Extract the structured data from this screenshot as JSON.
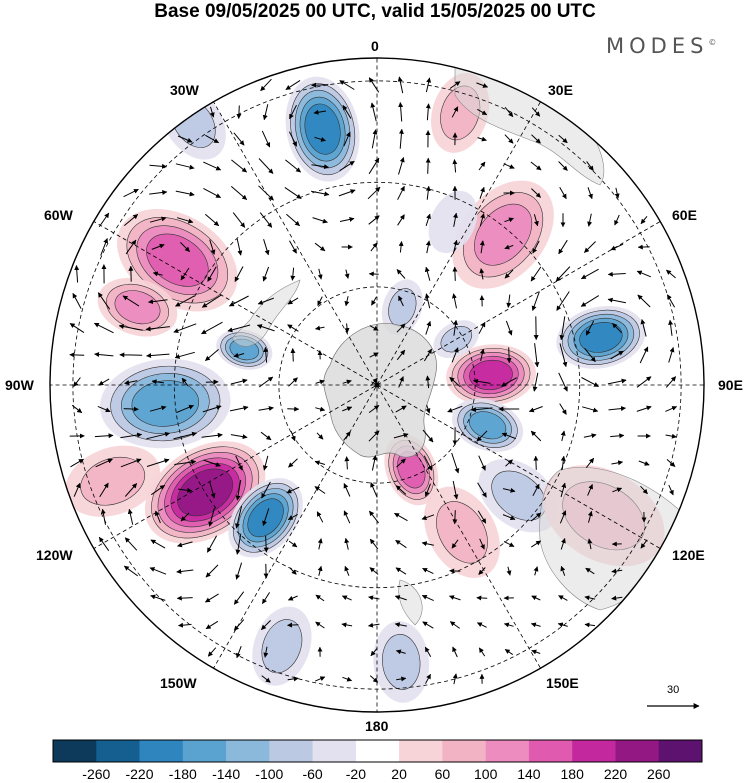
{
  "title": "Base 09/05/2025 00 UTC, valid 15/05/2025 00 UTC",
  "brand": "MODES",
  "brand_mark": "©",
  "longitudes": {
    "top": "0",
    "e30": "30E",
    "e60": "60E",
    "e90": "90E",
    "e120": "120E",
    "e150": "150E",
    "bottom": "180",
    "w150": "150W",
    "w120": "120W",
    "w90": "90W",
    "w60": "60W",
    "w30": "30W"
  },
  "vector_scale": {
    "label": "30"
  },
  "colorbar": {
    "labels": [
      "-260",
      "-220",
      "-180",
      "-140",
      "-100",
      "-60",
      "-20",
      "20",
      "60",
      "100",
      "140",
      "180",
      "220",
      "260"
    ],
    "colors": [
      "#0d3a5a",
      "#145f8f",
      "#2f86bf",
      "#5aa3d0",
      "#8ab9dc",
      "#bcc9e3",
      "#e3e1ef",
      "#ffffff",
      "#f7d4d8",
      "#f2b3c4",
      "#ec8cbf",
      "#e05bb0",
      "#c4289e",
      "#931884",
      "#5e1270"
    ]
  },
  "anomaly_blobs": [
    {
      "lon": -12,
      "colat": 0.8,
      "val": -190,
      "r": 0.13
    },
    {
      "lon": -58,
      "colat": 0.72,
      "val": 170,
      "r": 0.16
    },
    {
      "lon": -72,
      "colat": 0.77,
      "val": 120,
      "r": 0.1
    },
    {
      "lon": -75,
      "colat": 0.42,
      "val": -150,
      "r": 0.07
    },
    {
      "lon": -95,
      "colat": 0.65,
      "val": -170,
      "r": 0.16
    },
    {
      "lon": -122,
      "colat": 0.62,
      "val": 250,
      "r": 0.16
    },
    {
      "lon": -140,
      "colat": 0.53,
      "val": -200,
      "r": 0.11
    },
    {
      "lon": 158,
      "colat": 0.28,
      "val": 150,
      "r": 0.09
    },
    {
      "lon": 150,
      "colat": 0.52,
      "val": 60,
      "r": 0.12
    },
    {
      "lon": 128,
      "colat": 0.55,
      "val": -90,
      "r": 0.11
    },
    {
      "lon": 85,
      "colat": 0.35,
      "val": 190,
      "r": 0.11
    },
    {
      "lon": 110,
      "colat": 0.36,
      "val": -160,
      "r": 0.09
    },
    {
      "lon": 78,
      "colat": 0.7,
      "val": -210,
      "r": 0.11
    },
    {
      "lon": 40,
      "colat": 0.6,
      "val": 110,
      "r": 0.15
    },
    {
      "lon": 17,
      "colat": 0.87,
      "val": 70,
      "r": 0.1
    },
    {
      "lon": 18,
      "colat": 0.25,
      "val": -60,
      "r": 0.07
    },
    {
      "lon": 60,
      "colat": 0.28,
      "val": -70,
      "r": 0.06
    },
    {
      "lon": 120,
      "colat": 0.8,
      "val": 60,
      "r": 0.16
    },
    {
      "lon": 175,
      "colat": 0.85,
      "val": -60,
      "r": 0.1
    },
    {
      "lon": -160,
      "colat": 0.85,
      "val": -70,
      "r": 0.1
    },
    {
      "lon": -35,
      "colat": 0.98,
      "val": -60,
      "r": 0.1
    },
    {
      "lon": 25,
      "colat": 0.55,
      "val": -50,
      "r": 0.08
    },
    {
      "lon": -110,
      "colat": 0.86,
      "val": 70,
      "r": 0.12
    }
  ]
}
